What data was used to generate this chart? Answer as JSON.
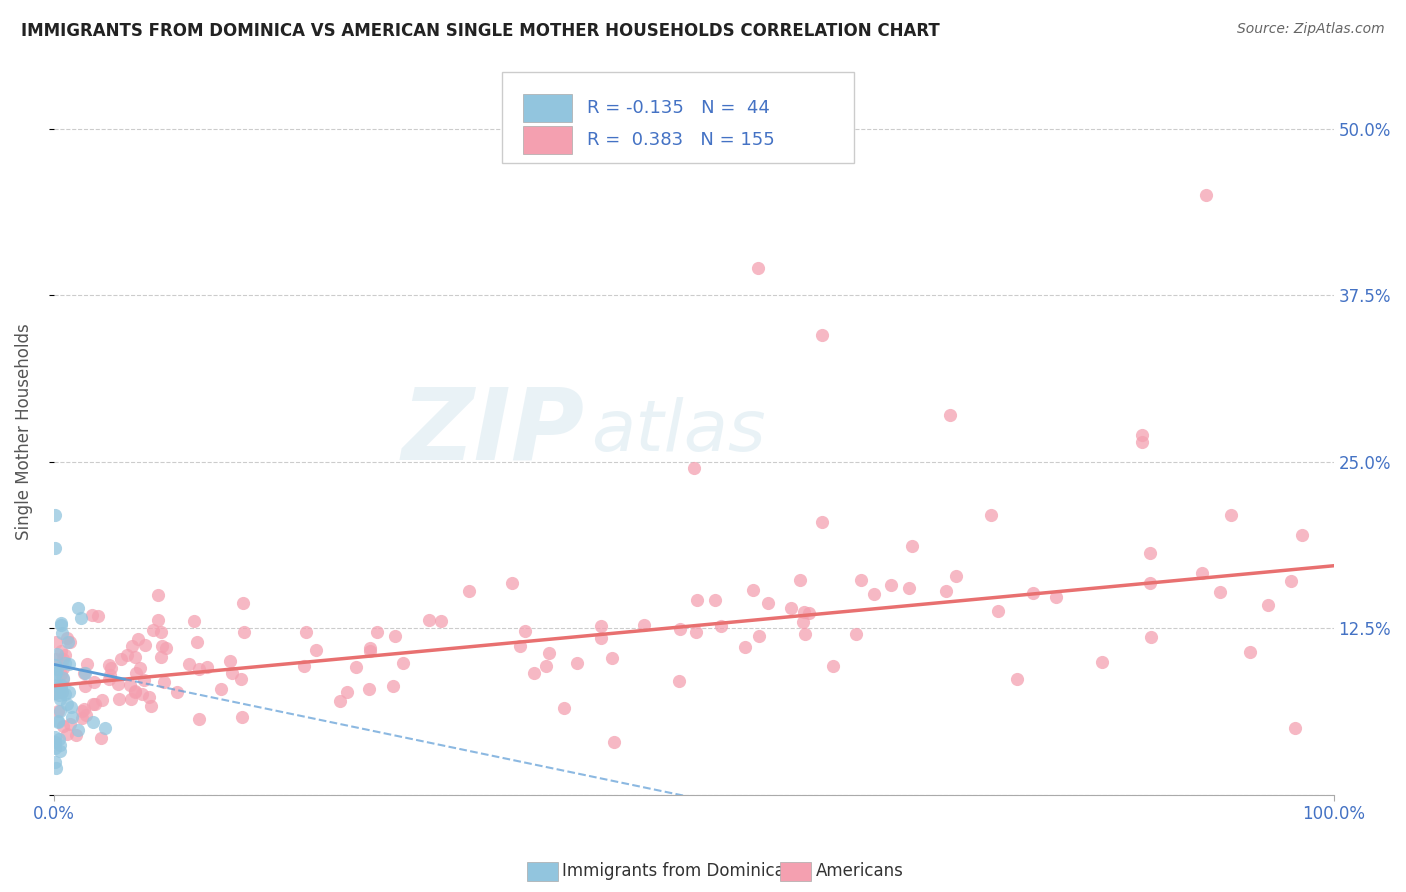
{
  "title": "IMMIGRANTS FROM DOMINICA VS AMERICAN SINGLE MOTHER HOUSEHOLDS CORRELATION CHART",
  "source": "Source: ZipAtlas.com",
  "ylabel": "Single Mother Households",
  "xlim": [
    0.0,
    1.0
  ],
  "ylim": [
    0.0,
    0.545
  ],
  "yticks": [
    0.0,
    0.125,
    0.25,
    0.375,
    0.5
  ],
  "ytick_labels": [
    "",
    "12.5%",
    "25.0%",
    "37.5%",
    "50.0%"
  ],
  "xtick_labels": [
    "0.0%",
    "100.0%"
  ],
  "xtick_positions": [
    0.0,
    1.0
  ],
  "blue_R": -0.135,
  "blue_N": 44,
  "pink_R": 0.383,
  "pink_N": 155,
  "blue_color": "#92C5DE",
  "pink_color": "#F4A0B0",
  "blue_line_color": "#5B9BD5",
  "pink_line_color": "#E87070",
  "grid_color": "#CCCCCC",
  "background_color": "#FFFFFF",
  "legend_label_blue": "Immigrants from Dominica",
  "legend_label_pink": "Americans",
  "label_color": "#4472C4",
  "title_color": "#222222",
  "source_color": "#666666"
}
